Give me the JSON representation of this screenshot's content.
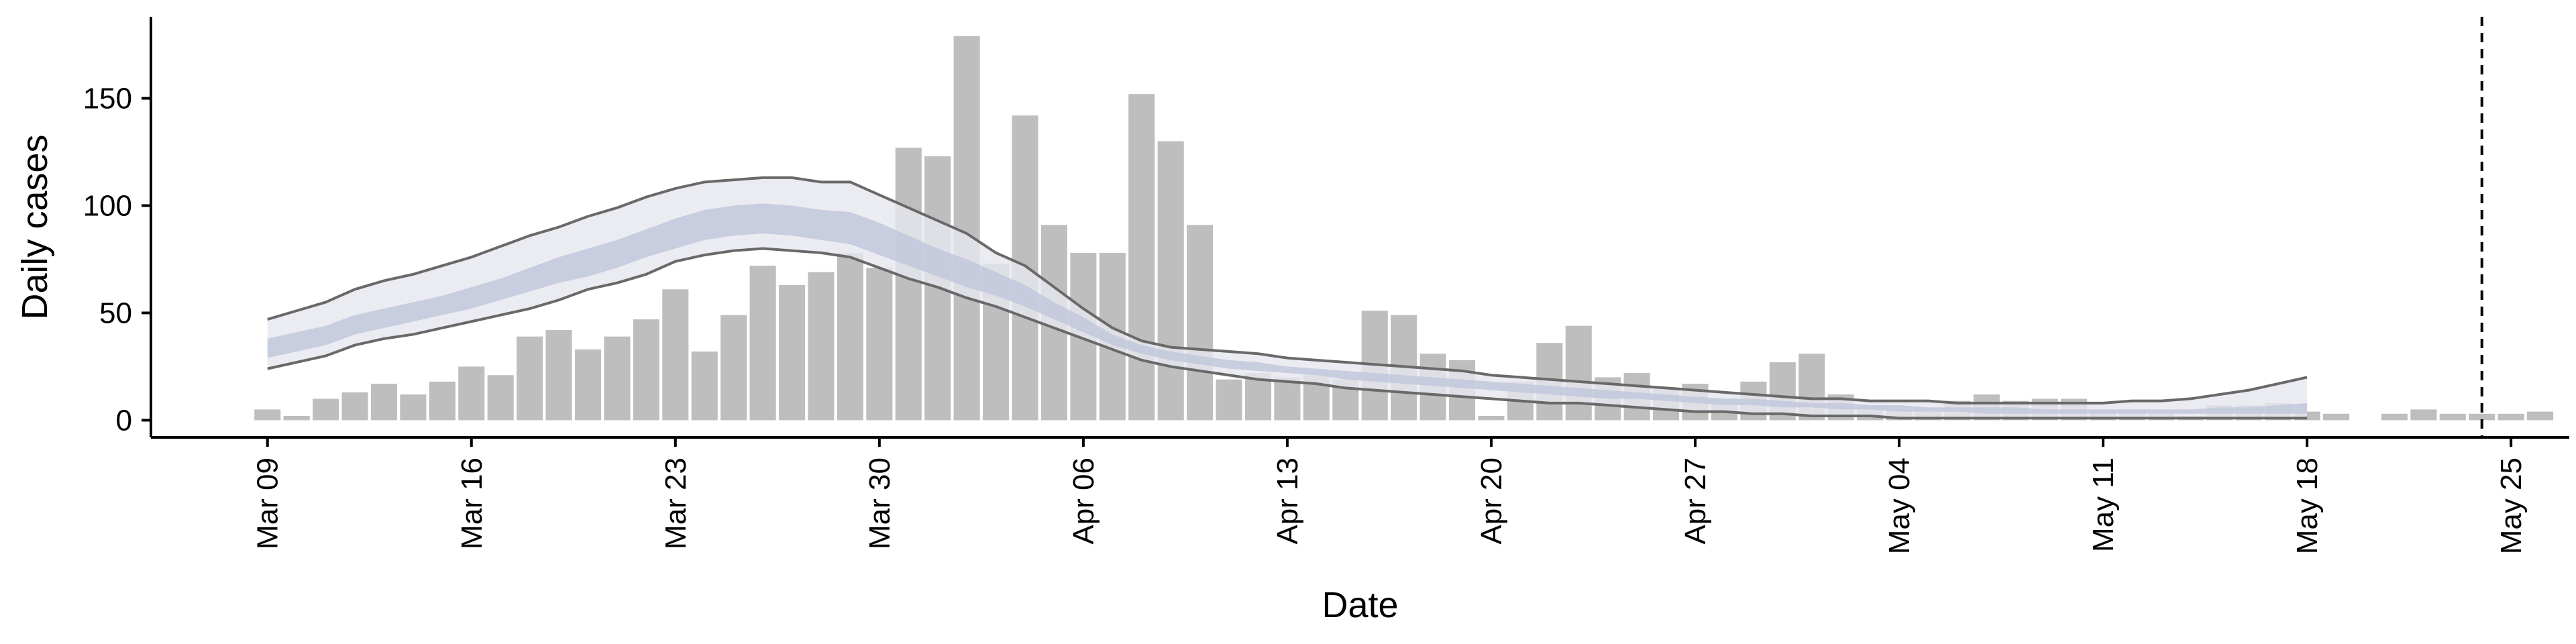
{
  "chart_data": {
    "type": "bar",
    "title": "",
    "xlabel": "Date",
    "ylabel": "Daily cases",
    "start_date": "2020-03-09",
    "xlim": [
      "2020-03-05",
      "2020-05-27"
    ],
    "ylim": [
      -8,
      188
    ],
    "yticks": [
      0,
      50,
      100,
      150
    ],
    "xticks": [
      {
        "date": "2020-03-09",
        "label": "Mar 09"
      },
      {
        "date": "2020-03-16",
        "label": "Mar 16"
      },
      {
        "date": "2020-03-23",
        "label": "Mar 23"
      },
      {
        "date": "2020-03-30",
        "label": "Mar 30"
      },
      {
        "date": "2020-04-06",
        "label": "Apr 06"
      },
      {
        "date": "2020-04-13",
        "label": "Apr 13"
      },
      {
        "date": "2020-04-20",
        "label": "Apr 20"
      },
      {
        "date": "2020-04-27",
        "label": "Apr 27"
      },
      {
        "date": "2020-05-04",
        "label": "May 04"
      },
      {
        "date": "2020-05-11",
        "label": "May 11"
      },
      {
        "date": "2020-05-18",
        "label": "May 18"
      },
      {
        "date": "2020-05-25",
        "label": "May 25"
      }
    ],
    "reported_cases": [
      5,
      2,
      10,
      13,
      17,
      12,
      18,
      25,
      21,
      39,
      42,
      33,
      39,
      47,
      61,
      32,
      49,
      72,
      63,
      69,
      78,
      71,
      127,
      123,
      179,
      73,
      142,
      91,
      78,
      78,
      152,
      130,
      91,
      19,
      22,
      20,
      22,
      19,
      51,
      49,
      31,
      28,
      2,
      18,
      36,
      44,
      20,
      22,
      15,
      17,
      10,
      18,
      27,
      31,
      12,
      7,
      5,
      4,
      9,
      12,
      9,
      10,
      10,
      5,
      5,
      3,
      2,
      7,
      7,
      8,
      4,
      3,
      0,
      3,
      5,
      3,
      3,
      3,
      4
    ],
    "fit_band_outer_upper": [
      47,
      51,
      55,
      61,
      65,
      68,
      72,
      76,
      81,
      86,
      90,
      95,
      99,
      104,
      108,
      111,
      112,
      113,
      113,
      111,
      111,
      105,
      99,
      93,
      87,
      78,
      72,
      62,
      52,
      43,
      37,
      34,
      33,
      32,
      31,
      29,
      28,
      27,
      26,
      25,
      24,
      23,
      21,
      20,
      19,
      18,
      17,
      16,
      15,
      14,
      13,
      12,
      11,
      10,
      10,
      9,
      9,
      9,
      8,
      8,
      8,
      8,
      8,
      8,
      9,
      9,
      10,
      12,
      14,
      17,
      20
    ],
    "fit_band_outer_lower": [
      24,
      27,
      30,
      35,
      38,
      40,
      43,
      46,
      49,
      52,
      56,
      61,
      64,
      68,
      74,
      77,
      79,
      80,
      79,
      78,
      76,
      71,
      66,
      62,
      57,
      53,
      48,
      43,
      38,
      33,
      28,
      25,
      23,
      21,
      19,
      18,
      17,
      15,
      14,
      13,
      12,
      11,
      10,
      9,
      8,
      8,
      7,
      6,
      5,
      4,
      4,
      3,
      3,
      2,
      2,
      2,
      1,
      1,
      1,
      1,
      1,
      1,
      1,
      1,
      1,
      1,
      1,
      1,
      1,
      1,
      1
    ],
    "fit_band_inner_upper": [
      38,
      41,
      44,
      49,
      52,
      55,
      58,
      62,
      66,
      71,
      76,
      80,
      84,
      89,
      94,
      98,
      100,
      101,
      100,
      98,
      97,
      92,
      86,
      80,
      75,
      69,
      63,
      55,
      48,
      40,
      35,
      32,
      30,
      28,
      27,
      25,
      24,
      23,
      22,
      21,
      20,
      19,
      18,
      17,
      16,
      15,
      14,
      13,
      12,
      11,
      10,
      10,
      9,
      8,
      8,
      7,
      7,
      6,
      6,
      6,
      6,
      5,
      5,
      5,
      5,
      5,
      5,
      6,
      6,
      7,
      8
    ],
    "fit_band_inner_lower": [
      29,
      32,
      35,
      40,
      43,
      46,
      49,
      52,
      56,
      60,
      64,
      67,
      71,
      76,
      80,
      84,
      86,
      87,
      86,
      84,
      82,
      77,
      72,
      67,
      62,
      58,
      53,
      47,
      41,
      35,
      31,
      28,
      26,
      24,
      23,
      22,
      21,
      19,
      18,
      17,
      16,
      15,
      14,
      13,
      12,
      11,
      10,
      10,
      9,
      8,
      7,
      7,
      6,
      6,
      5,
      5,
      4,
      4,
      4,
      3,
      3,
      3,
      3,
      3,
      3,
      3,
      3,
      3,
      3,
      3,
      3
    ],
    "vline_date": "2020-05-24",
    "colors": {
      "bars": "#bebebe",
      "band_outer": "#e6e7ef",
      "band_inner": "#c2c8dc",
      "band_edge": "#696969",
      "axis": "#000000"
    }
  }
}
